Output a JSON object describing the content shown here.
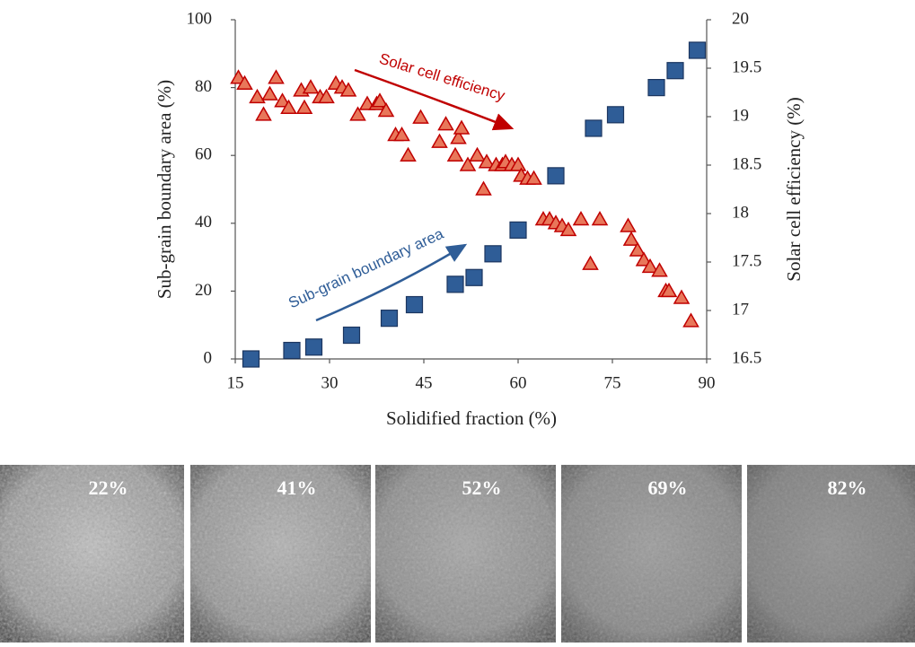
{
  "chart_data": {
    "type": "scatter",
    "xlabel": "Solidified fraction (%)",
    "ylabel": "Sub-grain boundary area (%)",
    "y2label": "Solar cell efficiency (%)",
    "xlim": [
      15,
      90
    ],
    "xticks": [
      15,
      30,
      45,
      60,
      75,
      90
    ],
    "ylim": [
      0,
      100
    ],
    "yticks": [
      0,
      20,
      40,
      60,
      80,
      100
    ],
    "y2lim": [
      16.5,
      20
    ],
    "y2ticks": [
      16.5,
      17,
      17.5,
      18,
      18.5,
      19,
      19.5,
      20
    ],
    "grid": false,
    "series": [
      {
        "name": "Sub-grain boundary area",
        "color": "#2f5d97",
        "marker": "square",
        "x": [
          17.5,
          24,
          27.5,
          33.5,
          39.5,
          43.5,
          50,
          53,
          56,
          60,
          66,
          72,
          75.5,
          82,
          85,
          88.5
        ],
        "values": [
          0,
          2.5,
          3.5,
          7,
          12,
          16,
          22,
          24,
          31,
          38,
          54,
          68,
          72,
          80,
          85,
          91
        ]
      },
      {
        "name": "Solar cell efficiency",
        "color": "#c00000",
        "marker": "triangle",
        "axis": "y2",
        "x": [
          15.5,
          16.5,
          18.5,
          19.5,
          20.5,
          21.5,
          22.5,
          23.5,
          25.5,
          26,
          27,
          28.5,
          29.5,
          31,
          32,
          33,
          34.5,
          36,
          37.5,
          38,
          39,
          40.5,
          41.5,
          42.5,
          44.5,
          47.5,
          48.5,
          50,
          50.5,
          51,
          52,
          53.5,
          54.5,
          55,
          56.5,
          57.5,
          58,
          59,
          60,
          60.5,
          61.5,
          62.5,
          64,
          65,
          66,
          67,
          68,
          70,
          71.5,
          73,
          77.5,
          78,
          79,
          80,
          81,
          82.5,
          83.5,
          84,
          86,
          87.5
        ],
        "values": [
          19.4,
          19.34,
          19.2,
          19.02,
          19.23,
          19.4,
          19.16,
          19.09,
          19.27,
          19.09,
          19.3,
          19.2,
          19.2,
          19.34,
          19.3,
          19.27,
          19.02,
          19.13,
          19.13,
          19.16,
          19.06,
          18.81,
          18.81,
          18.6,
          18.99,
          18.74,
          18.92,
          18.6,
          18.78,
          18.88,
          18.5,
          18.6,
          18.25,
          18.53,
          18.5,
          18.5,
          18.53,
          18.5,
          18.5,
          18.39,
          18.36,
          18.36,
          17.94,
          17.94,
          17.9,
          17.87,
          17.83,
          17.94,
          17.48,
          17.94,
          17.87,
          17.73,
          17.62,
          17.52,
          17.45,
          17.41,
          17.2,
          17.2,
          17.13,
          16.89
        ]
      }
    ]
  },
  "micrographs": [
    "22%",
    "41%",
    "52%",
    "69%",
    "82%"
  ]
}
